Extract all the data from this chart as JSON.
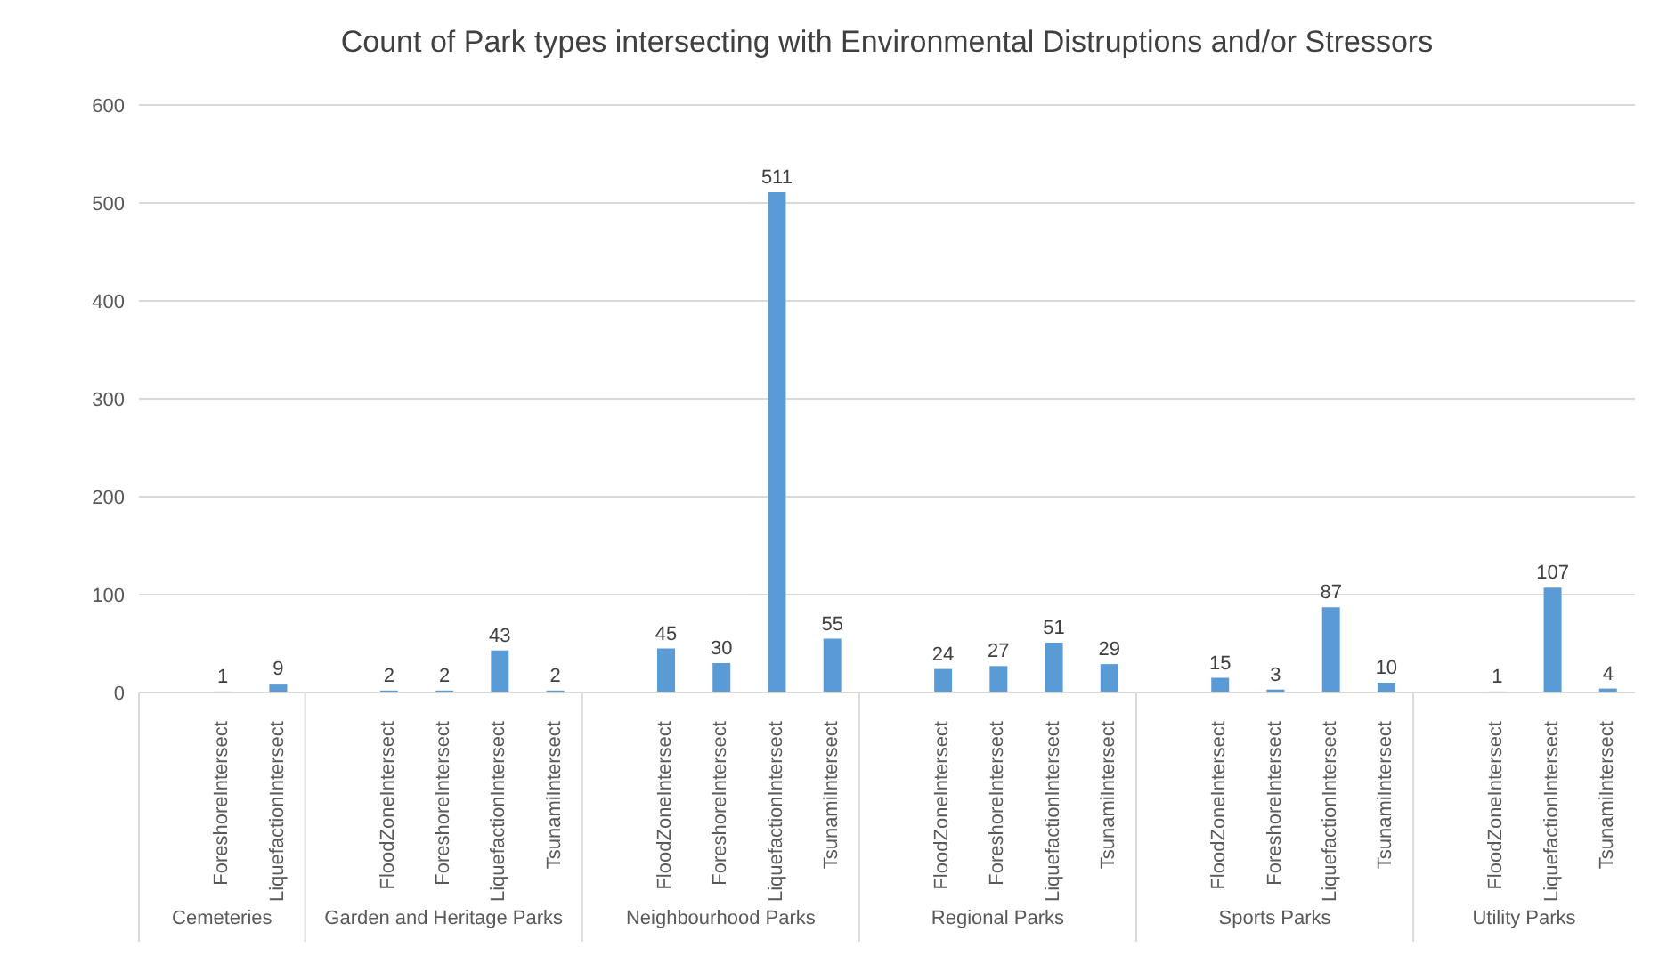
{
  "chart_data": {
    "type": "bar",
    "title": "Count of Park types intersecting with Environmental Distruptions and/or Stressors",
    "categories": [
      null,
      "ForeshoreIntersect",
      "LiquefactionIntersect",
      null,
      "FloodZoneIntersect",
      "ForeshoreIntersect",
      "LiquefactionIntersect",
      "TsunamiIntersect",
      null,
      "FloodZoneIntersect",
      "ForeshoreIntersect",
      "LiquefactionIntersect",
      "TsunamiIntersect",
      null,
      "FloodZoneIntersect",
      "ForeshoreIntersect",
      "LiquefactionIntersect",
      "TsunamiIntersect",
      null,
      "FloodZoneIntersect",
      "ForeshoreIntersect",
      "LiquefactionIntersect",
      "TsunamiIntersect",
      null,
      "FloodZoneIntersect",
      "LiquefactionIntersect",
      "TsunamiIntersect"
    ],
    "values": [
      null,
      1,
      9,
      null,
      2,
      2,
      43,
      2,
      null,
      45,
      30,
      511,
      55,
      null,
      24,
      27,
      51,
      29,
      null,
      15,
      3,
      87,
      10,
      null,
      1,
      107,
      4
    ],
    "color": "#5b9bd5",
    "annotations": [
      "Cemeteries",
      "Garden and Heritage Parks",
      "Neighbourhood Parks",
      "Regional Parks",
      "Sports Parks",
      "Utility Parks"
    ],
    "ylim": [
      0,
      600
    ],
    "yticks": [
      0,
      100,
      200,
      300,
      400,
      500,
      600
    ],
    "grid": "y",
    "data_labels": true
  }
}
